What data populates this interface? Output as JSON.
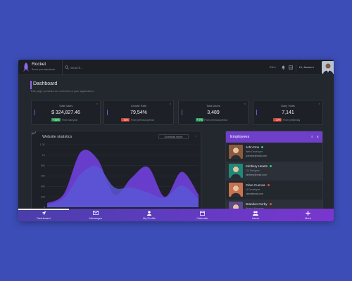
{
  "brand": {
    "name": "Rocket",
    "tagline": "Boost your standards"
  },
  "topbar": {
    "search_placeholder": "Search...",
    "lang": "EN ▾",
    "user": "Hi, James ▾"
  },
  "page": {
    "title": "Dashboard",
    "subtitle": "This page provides an overview of your application."
  },
  "stats": [
    {
      "label": "Total Sales",
      "value": "$ 324,827.46",
      "pct": "+ 46%",
      "note": "From last year",
      "pct_color": "#2e9e5b"
    },
    {
      "label": "Growth Rate",
      "value": "79,54%",
      "pct": "- 56%",
      "note": "From previous period",
      "pct_color": "#d0463b"
    },
    {
      "label": "Total Users",
      "value": "3,489",
      "pct": "+ 7%",
      "note": "From previous period",
      "pct_color": "#2e9e5b"
    },
    {
      "label": "Daily Visits",
      "value": "7,141",
      "pct": "- 32%",
      "note": "From yesterday",
      "pct_color": "#d0463b"
    }
  ],
  "chart": {
    "title": "Website statistics",
    "button": "Download report",
    "y_ticks": [
      "1.2K",
      "1K",
      "800",
      "600",
      "400",
      "200",
      "0"
    ]
  },
  "chart_data": {
    "type": "area",
    "title": "Website statistics",
    "x": [
      0,
      1,
      2,
      3,
      4,
      5,
      6,
      7,
      8,
      9
    ],
    "ylim": [
      0,
      1200
    ],
    "y_ticks": [
      1200,
      1000,
      800,
      600,
      400,
      200,
      0
    ],
    "series": [
      {
        "values": [
          80,
          260,
          1060,
          920,
          240,
          560,
          770,
          200,
          680,
          240
        ]
      },
      {
        "values": [
          40,
          180,
          640,
          780,
          380,
          380,
          280,
          180,
          420,
          160
        ]
      }
    ],
    "colors": [
      "#6e3fd4",
      "#5b57d6"
    ]
  },
  "employees": {
    "title": "Employees",
    "ctrl": "≡ ✕",
    "items": [
      {
        "name": "John Doe",
        "role": "Web Developer",
        "email": "johndoe@mail.com",
        "status": "#2ecc71",
        "bg": "#8c5a3c"
      },
      {
        "name": "Kimbery Hearts",
        "role": "UX Designer",
        "email": "kimbery@mail.com",
        "status": "#2ecc71",
        "bg": "#1f8a7a"
      },
      {
        "name": "Clare Cuenca",
        "role": "UI Developer",
        "email": "clare@mail.com",
        "status": "#e74c3c",
        "bg": "#c8734e"
      },
      {
        "name": "Brandon Gorby",
        "role": "Project Manager",
        "email": "brandon@mail.com",
        "status": "#e74c3c",
        "bg": "#5e4a8c"
      }
    ]
  },
  "nav": [
    {
      "label": "Dashboard",
      "icon": "rocket-icon"
    },
    {
      "label": "Messages",
      "icon": "envelope-icon"
    },
    {
      "label": "My Profile",
      "icon": "user-icon"
    },
    {
      "label": "Calendar",
      "icon": "calendar-icon"
    },
    {
      "label": "Users",
      "icon": "users-icon"
    },
    {
      "label": "More",
      "icon": "plus-icon"
    }
  ]
}
